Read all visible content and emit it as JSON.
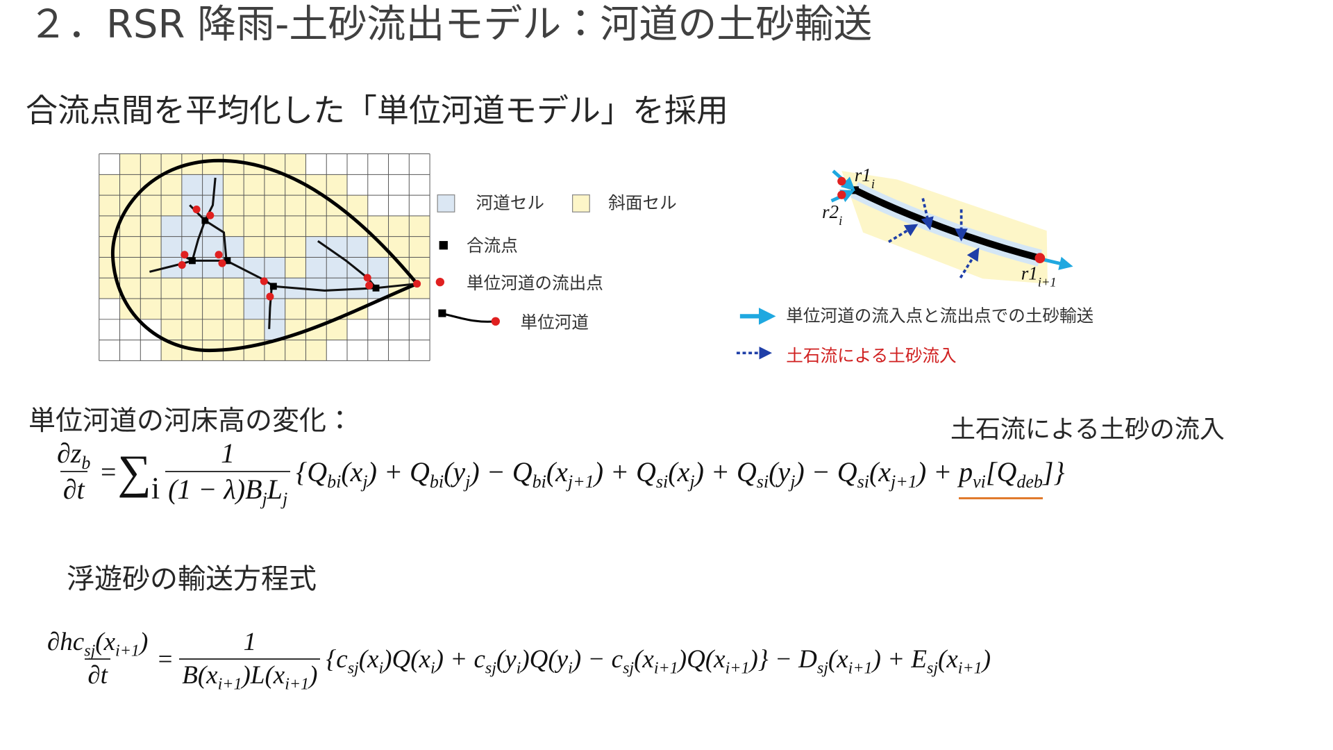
{
  "header": {
    "title": "２．RSR 降雨-土砂流出モデル：河道の土砂輸送",
    "subtitle": "合流点間を平均化した「単位河道モデル」を採用"
  },
  "grid_legend": {
    "channel_cell": "河道セル",
    "slope_cell": "斜面セル",
    "confluence": "合流点",
    "outlet": "単位河道の流出点",
    "unit_channel": "単位河道"
  },
  "channel_diagram": {
    "labels": [
      {
        "text": "r1",
        "sub": "i"
      },
      {
        "text": "r2",
        "sub": "i"
      },
      {
        "text": "r1",
        "sub": "i+1"
      }
    ],
    "legend": {
      "transport": "単位河道の流入点と流出点での土砂輸送",
      "debris_inflow": "土石流による土砂流入"
    }
  },
  "bed_equation": {
    "caption": "単位河道の河床高の変化：",
    "annotation": "土石流による土砂の流入",
    "lhs_numerator": [
      {
        "text": "∂z",
        "sub": "b"
      }
    ],
    "lhs_denominator": [
      {
        "text": "∂t"
      }
    ],
    "equals": "=",
    "sum": [
      {
        "text": "∑",
        "sub": "i"
      }
    ],
    "fraction_numerator": [
      {
        "text": "1"
      }
    ],
    "fraction_denominator": [
      {
        "text": "(1 − λ)B",
        "sub": "j"
      },
      {
        "text": "L",
        "sub": "j"
      }
    ],
    "body": [
      {
        "text": "{Q",
        "sub": "bi"
      },
      {
        "text": "(x",
        "sub": "j"
      },
      {
        "text": ") + Q",
        "sub": "bi"
      },
      {
        "text": "(y",
        "sub": "j"
      },
      {
        "text": ") − Q",
        "sub": "bi"
      },
      {
        "text": "(x",
        "sub": "j+1"
      },
      {
        "text": ") + Q",
        "sub": "si"
      },
      {
        "text": "(x",
        "sub": "j"
      },
      {
        "text": ") + Q",
        "sub": "si"
      },
      {
        "text": "(y",
        "sub": "j"
      },
      {
        "text": ") − Q",
        "sub": "si"
      },
      {
        "text": "(x",
        "sub": "j+1"
      },
      {
        "text": ") + "
      },
      {
        "text": "p",
        "sub": "vi"
      },
      {
        "text": "[Q",
        "sub": "deb"
      },
      {
        "text": "]}"
      }
    ]
  },
  "suspended_equation": {
    "caption": "浮遊砂の輸送方程式",
    "lhs_numerator": [
      {
        "text": "∂hc",
        "sub": "sj"
      },
      {
        "text": "(x",
        "sub": "i+1"
      },
      {
        "text": ")"
      }
    ],
    "lhs_denominator": [
      {
        "text": "∂t"
      }
    ],
    "equals": "=",
    "fraction_numerator": [
      {
        "text": "1"
      }
    ],
    "fraction_denominator": [
      {
        "text": "B(x",
        "sub": "i+1"
      },
      {
        "text": ")L(x",
        "sub": "i+1"
      },
      {
        "text": ")"
      }
    ],
    "body": [
      {
        "text": "{c",
        "sub": "sj"
      },
      {
        "text": "(x",
        "sub": "i"
      },
      {
        "text": ")Q(x",
        "sub": "i"
      },
      {
        "text": ") + c",
        "sub": "sj"
      },
      {
        "text": "(y",
        "sub": "i"
      },
      {
        "text": ")Q(y",
        "sub": "i"
      },
      {
        "text": ") − c",
        "sub": "sj"
      },
      {
        "text": "(x",
        "sub": "i+1"
      },
      {
        "text": ")Q(x",
        "sub": "i+1"
      },
      {
        "text": ")} − D",
        "sub": "sj"
      },
      {
        "text": "(x",
        "sub": "i+1"
      },
      {
        "text": ") + E",
        "sub": "sj"
      },
      {
        "text": "(x",
        "sub": "i+1"
      },
      {
        "text": ")"
      }
    ]
  }
}
